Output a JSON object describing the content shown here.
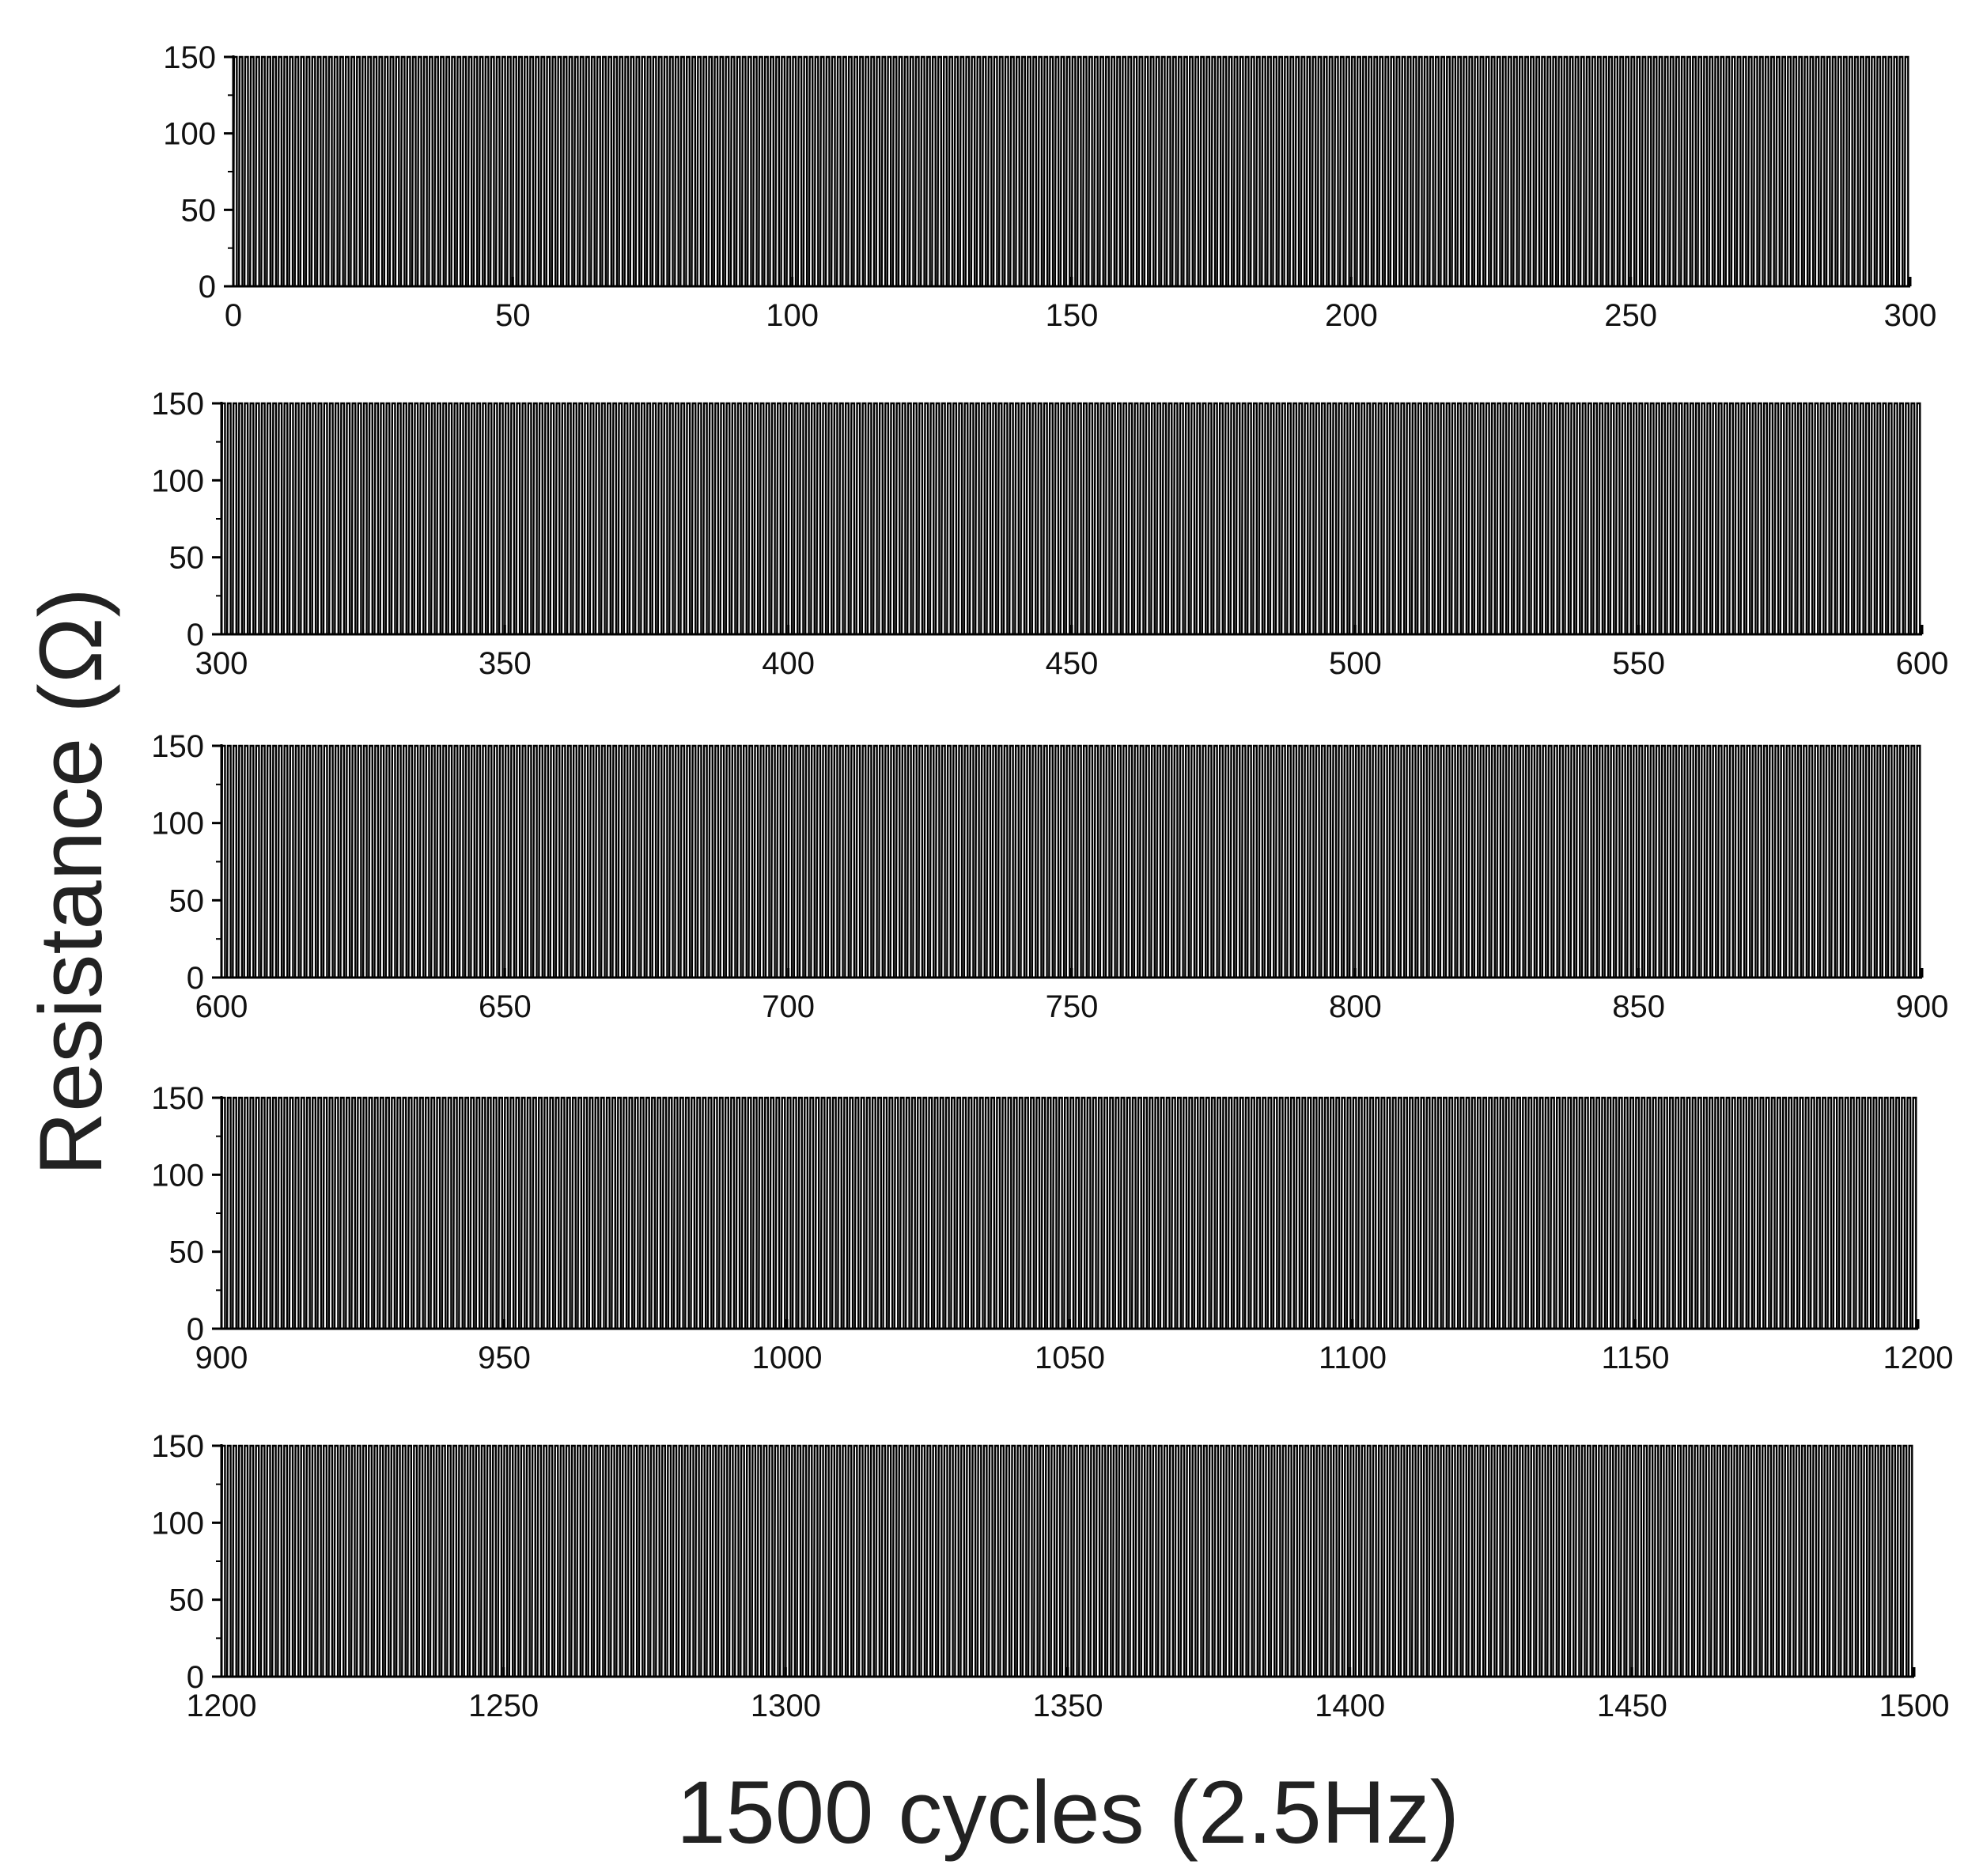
{
  "chart_data": {
    "type": "line",
    "xlabel": "1500 cycles (2.5Hz)",
    "ylabel": "Resistance (Ω)",
    "line_color": "#000000",
    "signal": {
      "description": "square-wave resistance switching, one cycle per unit",
      "low": 0,
      "high": 150,
      "cycles": 1500,
      "frequency_hz": 2.5
    },
    "panels": [
      {
        "xlim": [
          0,
          300
        ],
        "ylim": [
          0,
          150
        ],
        "x_ticks": [
          "0",
          "50",
          "100",
          "150",
          "200",
          "250",
          "300"
        ],
        "y_ticks": [
          "0",
          "50",
          "100",
          "150"
        ]
      },
      {
        "xlim": [
          300,
          600
        ],
        "ylim": [
          0,
          150
        ],
        "x_ticks": [
          "300",
          "350",
          "400",
          "450",
          "500",
          "550",
          "600"
        ],
        "y_ticks": [
          "0",
          "50",
          "100",
          "150"
        ]
      },
      {
        "xlim": [
          600,
          900
        ],
        "ylim": [
          0,
          150
        ],
        "x_ticks": [
          "600",
          "650",
          "700",
          "750",
          "800",
          "850",
          "900"
        ],
        "y_ticks": [
          "0",
          "50",
          "100",
          "150"
        ]
      },
      {
        "xlim": [
          900,
          1200
        ],
        "ylim": [
          0,
          150
        ],
        "x_ticks": [
          "900",
          "950",
          "1000",
          "1050",
          "1100",
          "1150",
          "1200"
        ],
        "y_ticks": [
          "0",
          "50",
          "100",
          "150"
        ]
      },
      {
        "xlim": [
          1200,
          1500
        ],
        "ylim": [
          0,
          150
        ],
        "x_ticks": [
          "1200",
          "1250",
          "1300",
          "1350",
          "1400",
          "1450",
          "1500"
        ],
        "y_ticks": [
          "0",
          "50",
          "100",
          "150"
        ]
      }
    ]
  }
}
